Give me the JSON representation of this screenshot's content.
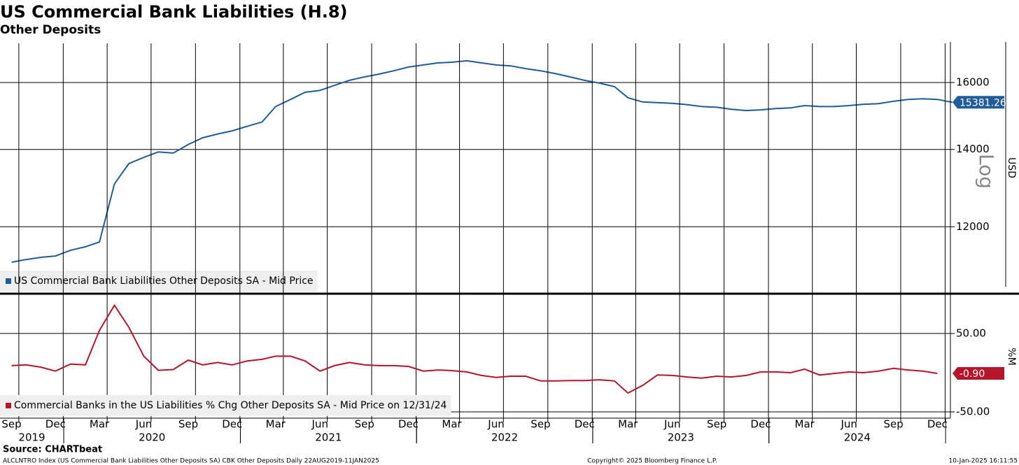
{
  "chart_data": [
    {
      "type": "line",
      "title": "US Commercial Bank Liabilities (H.8)",
      "subtitle": "Other Deposits",
      "xlim": [
        "2019-08-22",
        "2025-01-11"
      ],
      "x": [
        "2019-09",
        "2019-10",
        "2019-11",
        "2019-12",
        "2020-01",
        "2020-02",
        "2020-03",
        "2020-04",
        "2020-05",
        "2020-06",
        "2020-07",
        "2020-08",
        "2020-09",
        "2020-10",
        "2020-11",
        "2020-12",
        "2021-01",
        "2021-02",
        "2021-03",
        "2021-04",
        "2021-05",
        "2021-06",
        "2021-07",
        "2021-08",
        "2021-09",
        "2021-10",
        "2021-11",
        "2021-12",
        "2022-01",
        "2022-02",
        "2022-03",
        "2022-04",
        "2022-05",
        "2022-06",
        "2022-07",
        "2022-08",
        "2022-09",
        "2022-10",
        "2022-11",
        "2022-12",
        "2023-01",
        "2023-02",
        "2023-03",
        "2023-04",
        "2023-05",
        "2023-06",
        "2023-07",
        "2023-08",
        "2023-09",
        "2023-10",
        "2023-11",
        "2023-12",
        "2024-01",
        "2024-02",
        "2024-03",
        "2024-04",
        "2024-05",
        "2024-06",
        "2024-07",
        "2024-08",
        "2024-09",
        "2024-10",
        "2024-11",
        "2024-12",
        "2025-01"
      ],
      "series": [
        {
          "name": "US Commercial Bank Liabilities Other Deposits SA - Mid Price",
          "color": "#1f5c99",
          "values": [
            11180,
            11240,
            11290,
            11320,
            11450,
            11530,
            11640,
            13070,
            13610,
            13780,
            13930,
            13900,
            14140,
            14330,
            14440,
            14530,
            14660,
            14790,
            15250,
            15470,
            15690,
            15750,
            15910,
            16070,
            16180,
            16270,
            16380,
            16500,
            16570,
            16640,
            16660,
            16710,
            16640,
            16570,
            16540,
            16450,
            16380,
            16290,
            16180,
            16070,
            15980,
            15870,
            15520,
            15390,
            15370,
            15350,
            15310,
            15250,
            15230,
            15170,
            15130,
            15150,
            15190,
            15210,
            15280,
            15250,
            15250,
            15280,
            15320,
            15340,
            15410,
            15470,
            15490,
            15470,
            15381.26
          ]
        }
      ],
      "ylim": [
        10500,
        17300
      ],
      "yticks": [
        12000,
        14000,
        16000
      ],
      "log_scale": true,
      "grid": true,
      "y_axis_label": "USD",
      "annotation": "Log"
    },
    {
      "type": "line",
      "xlim": [
        "2019-08-22",
        "2025-01-11"
      ],
      "x": [
        "2019-09",
        "2019-10",
        "2019-11",
        "2019-12",
        "2020-01",
        "2020-02",
        "2020-03",
        "2020-04",
        "2020-05",
        "2020-06",
        "2020-07",
        "2020-08",
        "2020-09",
        "2020-10",
        "2020-11",
        "2020-12",
        "2021-01",
        "2021-02",
        "2021-03",
        "2021-04",
        "2021-05",
        "2021-06",
        "2021-07",
        "2021-08",
        "2021-09",
        "2021-10",
        "2021-11",
        "2021-12",
        "2022-01",
        "2022-02",
        "2022-03",
        "2022-04",
        "2022-05",
        "2022-06",
        "2022-07",
        "2022-08",
        "2022-09",
        "2022-10",
        "2022-11",
        "2022-12",
        "2023-01",
        "2023-02",
        "2023-03",
        "2023-04",
        "2023-05",
        "2023-06",
        "2023-07",
        "2023-08",
        "2023-09",
        "2023-10",
        "2023-11",
        "2023-12",
        "2024-01",
        "2024-02",
        "2024-03",
        "2024-04",
        "2024-05",
        "2024-06",
        "2024-07",
        "2024-08",
        "2024-09",
        "2024-10",
        "2024-11",
        "2024-12"
      ],
      "series": [
        {
          "name": "Commercial Banks in the US Liabilities % Chg Other Deposits SA - Mid Price on 12/31/24",
          "color": "#b5152b",
          "values": [
            9,
            10,
            7,
            2,
            11,
            10,
            54,
            86,
            58,
            21,
            3,
            4,
            16,
            10,
            13,
            10,
            15,
            17,
            21,
            21,
            15,
            2,
            9,
            13,
            10,
            9,
            9,
            8,
            2,
            3.5,
            2.7,
            1,
            -3.5,
            -6,
            -4.5,
            -4.5,
            -10.5,
            -10.5,
            -10,
            -10,
            -9,
            -10.5,
            -26,
            -16,
            -3,
            -3.5,
            -5.5,
            -7,
            -4.5,
            -5.5,
            -3.5,
            1,
            1,
            0,
            4.5,
            -3,
            -1,
            1,
            0,
            2,
            5.5,
            3.5,
            2,
            -0.9
          ],
          "value_labels": [
            null,
            null,
            null,
            null,
            null,
            null,
            null,
            null,
            null,
            null,
            null,
            null,
            null,
            null,
            null,
            null,
            null,
            null,
            null,
            null,
            null,
            null,
            null,
            null,
            null,
            null,
            null,
            null,
            null,
            null,
            null,
            null,
            null,
            null,
            null,
            null,
            null,
            null,
            null,
            null,
            null,
            null,
            null,
            null,
            null,
            null,
            null,
            null,
            null,
            null,
            null,
            null,
            null,
            null,
            null,
            null,
            null,
            null,
            null,
            null,
            null,
            null,
            null,
            "-0.90"
          ]
        }
      ],
      "ylim": [
        -58,
        99
      ],
      "yticks": [
        {
          "value": -50,
          "label": "-50.00"
        },
        {
          "value": 50,
          "label": "50.00"
        }
      ],
      "grid": true,
      "y_axis_label": "%M",
      "xticks": [
        {
          "value": "2019-09",
          "label": "Sep"
        },
        {
          "value": "2019-12",
          "label": "Dec"
        },
        {
          "value": "2020-03",
          "label": "Mar"
        },
        {
          "value": "2020-06",
          "label": "Jun"
        },
        {
          "value": "2020-09",
          "label": "Sep"
        },
        {
          "value": "2020-12",
          "label": "Dec"
        },
        {
          "value": "2021-03",
          "label": "Mar"
        },
        {
          "value": "2021-06",
          "label": "Jun"
        },
        {
          "value": "2021-09",
          "label": "Sep"
        },
        {
          "value": "2021-12",
          "label": "Dec"
        },
        {
          "value": "2022-03",
          "label": "Mar"
        },
        {
          "value": "2022-06",
          "label": "Jun"
        },
        {
          "value": "2022-09",
          "label": "Sep"
        },
        {
          "value": "2022-12",
          "label": "Dec"
        },
        {
          "value": "2023-03",
          "label": "Mar"
        },
        {
          "value": "2023-06",
          "label": "Jun"
        },
        {
          "value": "2023-09",
          "label": "Sep"
        },
        {
          "value": "2023-12",
          "label": "Dec"
        },
        {
          "value": "2024-03",
          "label": "Mar"
        },
        {
          "value": "2024-06",
          "label": "Jun"
        },
        {
          "value": "2024-09",
          "label": "Sep"
        },
        {
          "value": "2024-12",
          "label": "Dec"
        }
      ],
      "years": [
        "2019",
        "2020",
        "2021",
        "2022",
        "2023",
        "2024"
      ]
    }
  ],
  "footer": {
    "source": "Source: CHARTbeat",
    "description": "ALCLNTRO Index (US Commercial Bank Liabilities Other Deposits SA) CBK Other Deposits  Daily 22AUG2019-11JAN2025",
    "copyright": "Copyright© 2025 Bloomberg Finance L.P.",
    "timestamp": "10-Jan-2025 16:11:55"
  }
}
